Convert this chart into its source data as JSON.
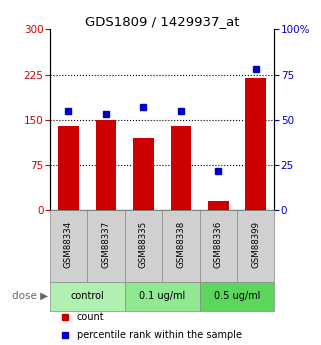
{
  "title": "GDS1809 / 1429937_at",
  "samples": [
    "GSM88334",
    "GSM88337",
    "GSM88335",
    "GSM88338",
    "GSM88336",
    "GSM88399"
  ],
  "bar_values": [
    140,
    150,
    120,
    140,
    15,
    220
  ],
  "dot_values": [
    55,
    53,
    57,
    55,
    22,
    78
  ],
  "bar_color": "#cc0000",
  "dot_color": "#0000cc",
  "ylim_left": [
    0,
    300
  ],
  "ylim_right": [
    0,
    100
  ],
  "yticks_left": [
    0,
    75,
    150,
    225,
    300
  ],
  "yticks_right": [
    0,
    25,
    50,
    75,
    100
  ],
  "ytick_labels_right": [
    "0",
    "25",
    "50",
    "75",
    "100%"
  ],
  "hlines": [
    75,
    150,
    225
  ],
  "dose_groups": [
    {
      "label": "control",
      "indices": [
        0,
        1
      ],
      "color": "#b2f0b2"
    },
    {
      "label": "0.1 ug/ml",
      "indices": [
        2,
        3
      ],
      "color": "#90e890"
    },
    {
      "label": "0.5 ug/ml",
      "indices": [
        4,
        5
      ],
      "color": "#5cd65c"
    }
  ],
  "dose_label": "dose",
  "legend_count": "count",
  "legend_percentile": "percentile rank within the sample",
  "bg_color": "#ffffff",
  "tick_label_color_left": "#cc0000",
  "tick_label_color_right": "#0000cc",
  "sample_bg_color": "#d0d0d0"
}
